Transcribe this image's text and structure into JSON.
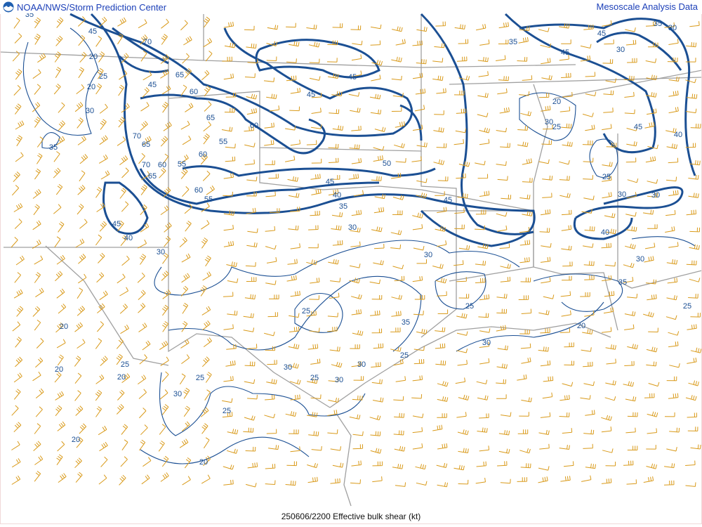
{
  "header": {
    "left_title": "NOAA/NWS/Storm Prediction Center",
    "right_title": "Mesoscale Analysis Data",
    "logo": "noaa-logo"
  },
  "footer": {
    "caption": "250606/2200 Effective bulk shear (kt)"
  },
  "colors": {
    "contour": "#1b4f93",
    "barb": "#d99a1a",
    "border": "#9a9a9a",
    "title": "#1b3fb8"
  },
  "contour_labels": [
    "35",
    "45",
    "70",
    "20",
    "25",
    "20",
    "45",
    "65",
    "60",
    "30",
    "35",
    "65",
    "60",
    "55",
    "70",
    "65",
    "60",
    "55",
    "70",
    "60",
    "65",
    "60",
    "55",
    "45",
    "40",
    "45",
    "40",
    "35",
    "45",
    "50",
    "45",
    "45",
    "30",
    "30",
    "30",
    "25",
    "35",
    "25",
    "30",
    "25",
    "30",
    "30",
    "25",
    "30",
    "25",
    "30",
    "25",
    "25",
    "20",
    "20",
    "20",
    "20",
    "20",
    "35",
    "45",
    "45",
    "35",
    "30",
    "30",
    "20",
    "30",
    "25",
    "45",
    "40",
    "25",
    "30",
    "30",
    "40",
    "30",
    "35",
    "20",
    "25"
  ]
}
